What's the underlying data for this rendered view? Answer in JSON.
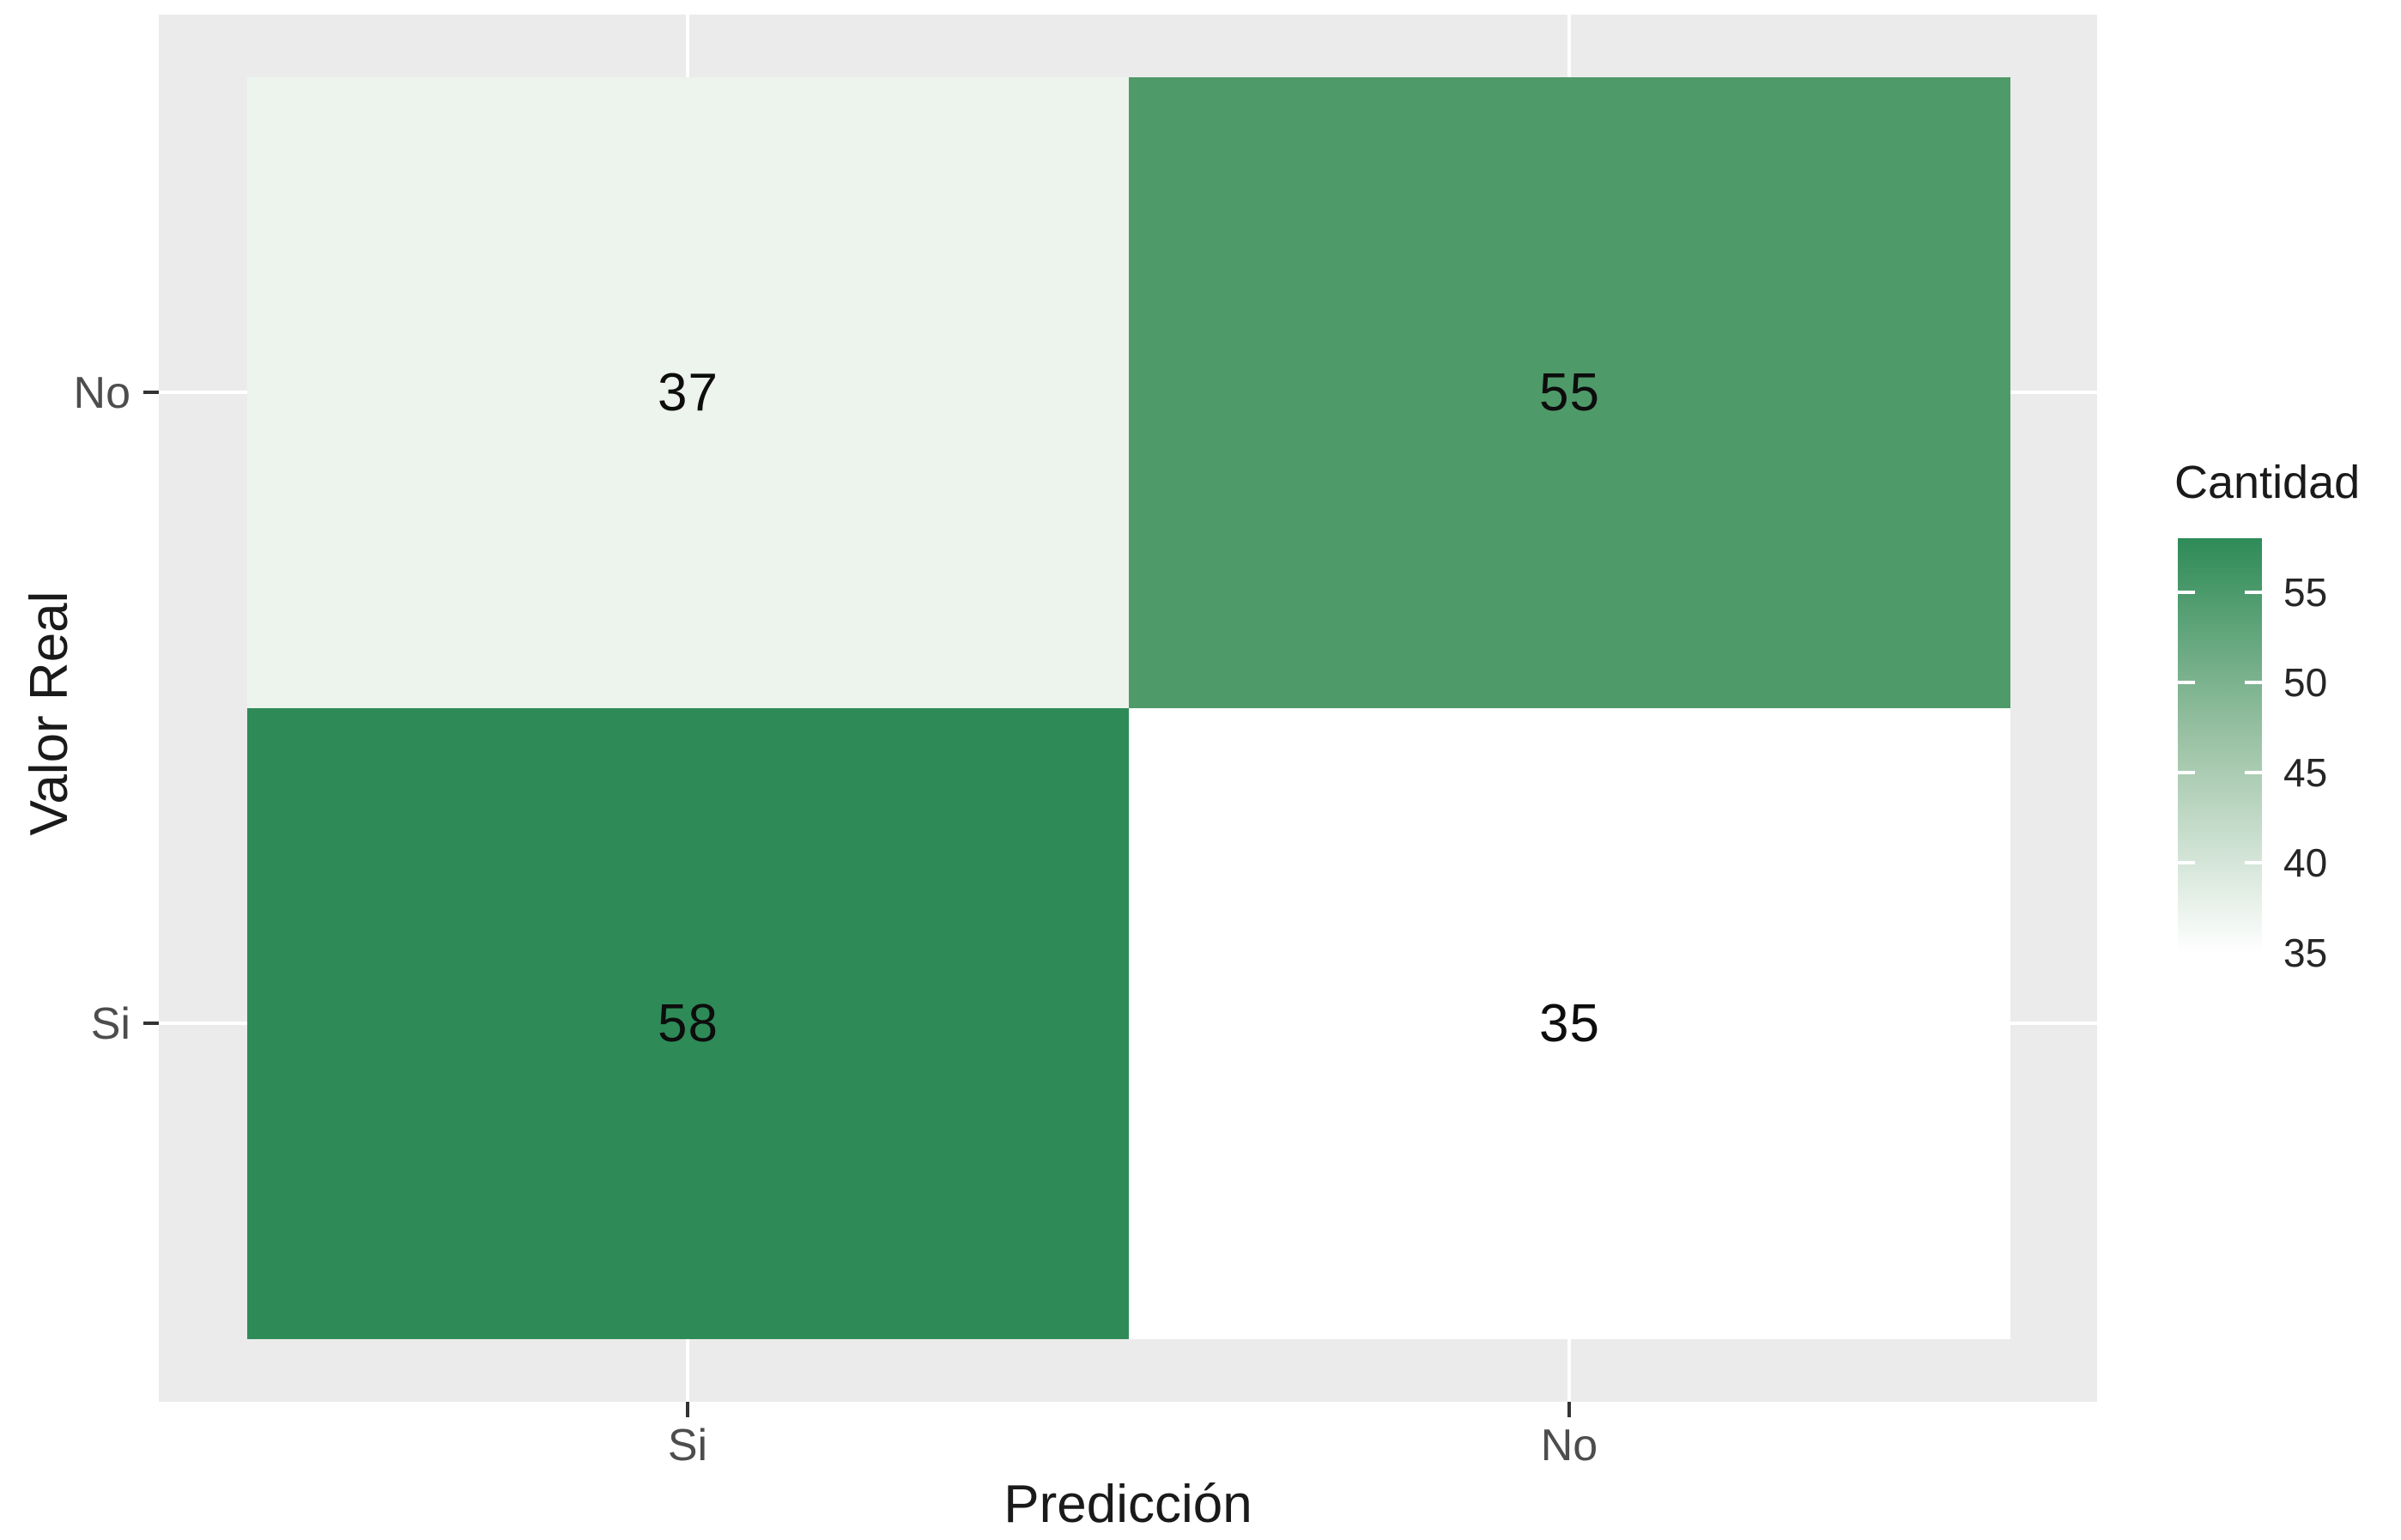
{
  "chart_data": {
    "type": "heatmap",
    "title": "",
    "xlabel": "Predicción",
    "ylabel": "Valor Real",
    "x_categories": [
      "Si",
      "No"
    ],
    "y_categories": [
      "No",
      "Si"
    ],
    "grid": true,
    "panel_background": "#ebebeb",
    "gridline_color": "#ffffff",
    "cells": [
      {
        "x": "Si",
        "y": "No",
        "value": 37,
        "color": "#ecf4ed"
      },
      {
        "x": "No",
        "y": "No",
        "value": 55,
        "color": "#4f9a69"
      },
      {
        "x": "Si",
        "y": "Si",
        "value": 58,
        "color": "#2e8b57"
      },
      {
        "x": "No",
        "y": "Si",
        "value": 35,
        "color": "#ffffff"
      }
    ],
    "legend": {
      "title": "Cantidad",
      "position": "right",
      "range": [
        35,
        58
      ],
      "ticks": [
        {
          "label": "55"
        },
        {
          "label": "50"
        },
        {
          "label": "45"
        },
        {
          "label": "40"
        },
        {
          "label": "35"
        }
      ],
      "gradient": {
        "high": "#2e8b57",
        "mid": "#9ec4a7",
        "low": "#ffffff"
      }
    },
    "axes": {
      "x": {
        "title": "Predicción",
        "ticks": [
          {
            "label": "Si"
          },
          {
            "label": "No"
          }
        ]
      },
      "y": {
        "title": "Valor Real",
        "ticks": [
          {
            "label": "No"
          },
          {
            "label": "Si"
          }
        ]
      }
    }
  }
}
